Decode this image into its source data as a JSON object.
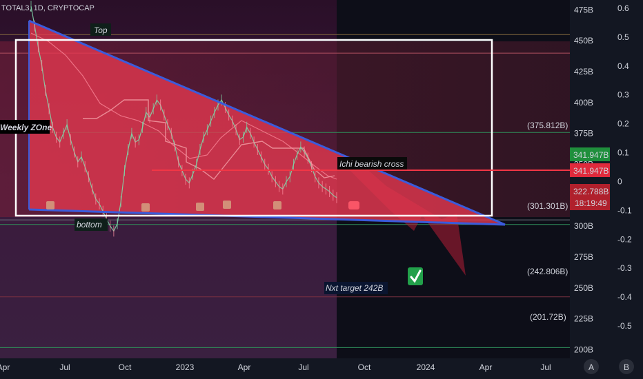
{
  "header": {
    "symbol": "TOTAL3, 1D, CRYPTOCAP"
  },
  "chart_data": {
    "type": "line",
    "title": "TOTAL3, 1D, CRYPTOCAP",
    "x_ticks": [
      "Apr",
      "Jul",
      "Oct",
      "2023",
      "Apr",
      "Jul",
      "Oct",
      "2024",
      "Apr",
      "Jul"
    ],
    "y_ticks": [
      "475B",
      "450B",
      "425B",
      "400B",
      "375B",
      "350B",
      "325B",
      "300B",
      "275B",
      "250B",
      "225B",
      "200B"
    ],
    "y_range_billions": [
      193,
      483
    ],
    "right_axis_ticks": [
      "0.6",
      "0.5",
      "0.4",
      "0.3",
      "0.2",
      "0.1",
      "0",
      "-0.1",
      "-0.2",
      "-0.3",
      "-0.4",
      "-0.5"
    ],
    "series": [
      {
        "values": [
          478,
          462,
          445,
          430,
          410,
          395,
          380,
          372,
          368,
          375,
          382,
          370,
          360,
          352,
          356,
          348,
          340,
          330,
          322,
          318,
          312,
          306,
          300,
          296,
          302,
          320,
          345,
          362,
          375,
          368,
          370,
          380,
          392,
          388,
          395,
          402,
          398,
          390,
          382,
          375,
          365,
          352,
          345,
          338,
          335,
          342,
          350,
          362,
          372,
          378,
          385,
          392,
          398,
          402,
          396,
          390,
          385,
          378,
          370,
          372,
          380,
          375,
          368,
          362,
          356,
          350,
          346,
          340,
          336,
          332,
          330,
          336,
          340,
          350,
          358,
          364,
          360,
          355,
          348,
          340,
          335,
          332,
          330,
          328,
          325,
          323
        ]
      }
    ],
    "price_labels": {
      "upper": "341.947B",
      "lower": "341.947B",
      "current": "322.788B",
      "countdown": "18:19:49"
    },
    "fib_levels": [
      "(375.812B)",
      "(301.301B)",
      "(242.806B)",
      "(201.72B)"
    ],
    "annotations": {
      "top": "Top",
      "bottom": "bottom",
      "weekly_zone": "Weekly ZOne",
      "ichi": "Ichi bearish cross",
      "next_target": "Nxt target 242B"
    },
    "colors": {
      "background": "#131722",
      "triangle": "#e53950",
      "trendline": "#3b5bdb",
      "price_green": "#26a69a",
      "price_red": "#f23645",
      "zone_box": "#ffffff",
      "purple_zone": "#4a2a52"
    }
  },
  "footer": {
    "scale_a": "A",
    "scale_b": "B"
  }
}
